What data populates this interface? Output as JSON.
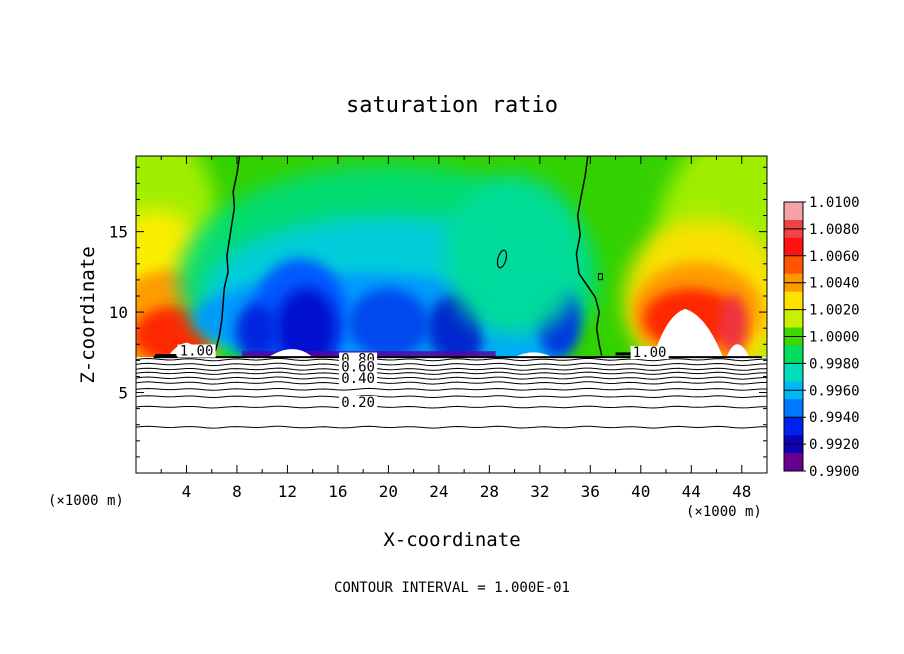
{
  "chart_data": {
    "type": "heatmap",
    "title": "saturation ratio",
    "xlabel": "X-coordinate",
    "ylabel": "Z-coordinate",
    "x_unit_label": "(×1000 m)",
    "y_unit_label": "(×1000 m)",
    "x_ticks": [
      4,
      8,
      12,
      16,
      20,
      24,
      28,
      32,
      36,
      40,
      44,
      48
    ],
    "y_ticks": [
      5,
      10,
      15
    ],
    "xlim": [
      0,
      50
    ],
    "ylim": [
      0,
      19.7
    ],
    "footer": "CONTOUR INTERVAL = 1.000E-01",
    "colorbar": {
      "labels": [
        "1.0100",
        "1.0080",
        "1.0060",
        "1.0040",
        "1.0020",
        "1.0000",
        "0.9980",
        "0.9960",
        "0.9940",
        "0.9920",
        "0.9900"
      ],
      "colors": [
        "#f5a3a8",
        "#ee4444",
        "#ff1111",
        "#ff5500",
        "#ff9900",
        "#ffe100",
        "#c8f000",
        "#3fd700",
        "#00dd60",
        "#00ddbb",
        "#00b8f5",
        "#0077ff",
        "#0022ee",
        "#1100bb",
        "#6a0090"
      ],
      "position": "right"
    },
    "contour_labels": [
      {
        "text": "1.00",
        "x": 4.8,
        "y": 7.3
      },
      {
        "text": "1.00",
        "x": 40.7,
        "y": 7.2
      },
      {
        "text": "0.80",
        "x": 17.6,
        "y": 6.8
      },
      {
        "text": "0.60",
        "x": 17.6,
        "y": 6.3
      },
      {
        "text": "0.40",
        "x": 17.6,
        "y": 5.6
      },
      {
        "text": "0.20",
        "x": 17.6,
        "y": 4.1
      }
    ]
  }
}
